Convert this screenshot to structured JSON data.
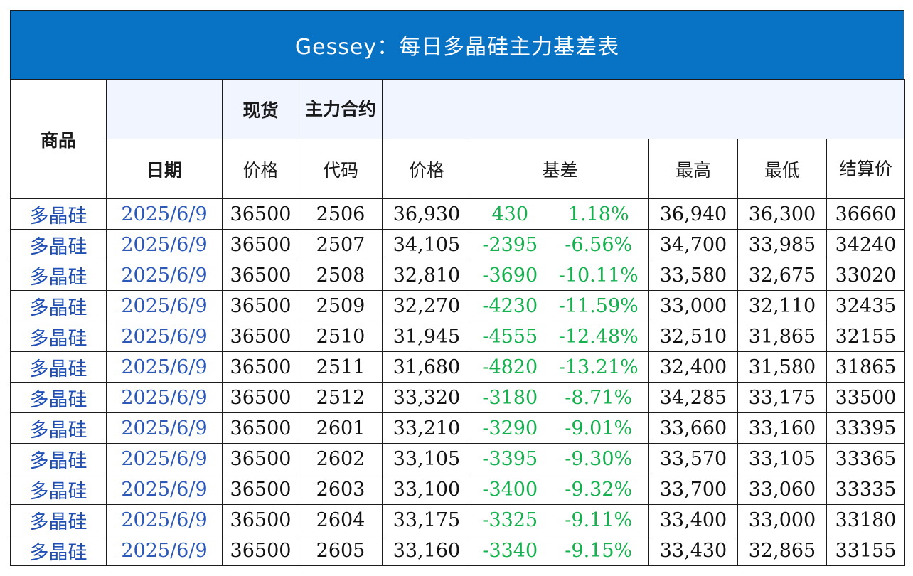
{
  "title": "Gessey：每日多晶硅主力基差表",
  "headers": {
    "product": "商品",
    "date": "日期",
    "spot": "现货",
    "main_contract": "主力合约",
    "spot_price": "价格",
    "code": "代码",
    "price": "价格",
    "basis": "基差",
    "high": "最高",
    "low": "最低",
    "settle": "结算价"
  },
  "rows": [
    {
      "product": "多晶硅",
      "date": "2025/6/9",
      "spot": "36500",
      "code": "2506",
      "price": "36,930",
      "basis": "430",
      "basis_pct": "1.18%",
      "high": "36,940",
      "low": "36,300",
      "settle": "36660"
    },
    {
      "product": "多晶硅",
      "date": "2025/6/9",
      "spot": "36500",
      "code": "2507",
      "price": "34,105",
      "basis": "-2395",
      "basis_pct": "-6.56%",
      "high": "34,700",
      "low": "33,985",
      "settle": "34240"
    },
    {
      "product": "多晶硅",
      "date": "2025/6/9",
      "spot": "36500",
      "code": "2508",
      "price": "32,810",
      "basis": "-3690",
      "basis_pct": "-10.11%",
      "high": "33,580",
      "low": "32,675",
      "settle": "33020"
    },
    {
      "product": "多晶硅",
      "date": "2025/6/9",
      "spot": "36500",
      "code": "2509",
      "price": "32,270",
      "basis": "-4230",
      "basis_pct": "-11.59%",
      "high": "33,000",
      "low": "32,110",
      "settle": "32435"
    },
    {
      "product": "多晶硅",
      "date": "2025/6/9",
      "spot": "36500",
      "code": "2510",
      "price": "31,945",
      "basis": "-4555",
      "basis_pct": "-12.48%",
      "high": "32,510",
      "low": "31,865",
      "settle": "32155"
    },
    {
      "product": "多晶硅",
      "date": "2025/6/9",
      "spot": "36500",
      "code": "2511",
      "price": "31,680",
      "basis": "-4820",
      "basis_pct": "-13.21%",
      "high": "32,400",
      "low": "31,580",
      "settle": "31865"
    },
    {
      "product": "多晶硅",
      "date": "2025/6/9",
      "spot": "36500",
      "code": "2512",
      "price": "33,320",
      "basis": "-3180",
      "basis_pct": "-8.71%",
      "high": "34,285",
      "low": "33,175",
      "settle": "33500"
    },
    {
      "product": "多晶硅",
      "date": "2025/6/9",
      "spot": "36500",
      "code": "2601",
      "price": "33,210",
      "basis": "-3290",
      "basis_pct": "-9.01%",
      "high": "33,660",
      "low": "33,160",
      "settle": "33395"
    },
    {
      "product": "多晶硅",
      "date": "2025/6/9",
      "spot": "36500",
      "code": "2602",
      "price": "33,105",
      "basis": "-3395",
      "basis_pct": "-9.30%",
      "high": "33,570",
      "low": "33,105",
      "settle": "33365"
    },
    {
      "product": "多晶硅",
      "date": "2025/6/9",
      "spot": "36500",
      "code": "2603",
      "price": "33,100",
      "basis": "-3400",
      "basis_pct": "-9.32%",
      "high": "33,700",
      "low": "33,060",
      "settle": "33335"
    },
    {
      "product": "多晶硅",
      "date": "2025/6/9",
      "spot": "36500",
      "code": "2604",
      "price": "33,175",
      "basis": "-3325",
      "basis_pct": "-9.11%",
      "high": "33,400",
      "low": "33,000",
      "settle": "33180"
    },
    {
      "product": "多晶硅",
      "date": "2025/6/9",
      "spot": "36500",
      "code": "2605",
      "price": "33,160",
      "basis": "-3340",
      "basis_pct": "-9.15%",
      "high": "33,430",
      "low": "32,865",
      "settle": "33155"
    }
  ]
}
